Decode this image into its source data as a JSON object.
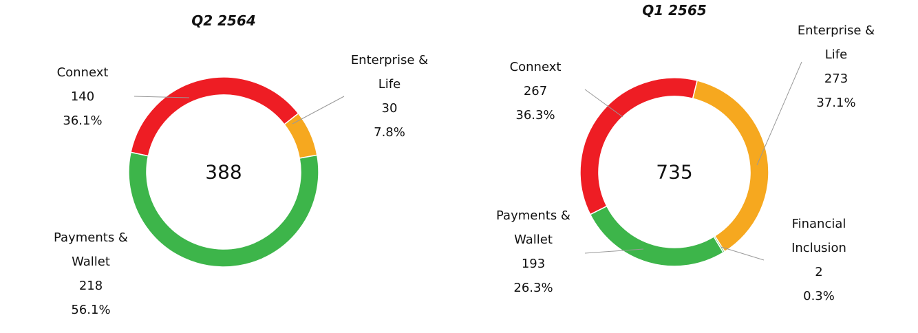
{
  "chart_data": [
    {
      "type": "pie",
      "donut": true,
      "title": "Q2 2564",
      "total": 388,
      "categories": [
        "Connext",
        "Enterprise & Life",
        "Payments & Wallet"
      ],
      "values": [
        140,
        30,
        218
      ],
      "shares": [
        36.1,
        7.8,
        56.1
      ],
      "share_labels": [
        "36.1%",
        "7.8%",
        "56.1%"
      ],
      "colors": [
        "#ee1d24",
        "#f6a81f",
        "#3db54a"
      ]
    },
    {
      "type": "pie",
      "donut": true,
      "title": "Q1 2565",
      "total": 735,
      "categories": [
        "Enterprise & Life",
        "Financial Inclusion",
        "Payments & Wallet",
        "Connext"
      ],
      "values": [
        273,
        2,
        193,
        267
      ],
      "shares": [
        37.1,
        0.3,
        26.3,
        36.3
      ],
      "share_labels": [
        "37.1%",
        "0.3%",
        "26.3%",
        "36.3%"
      ],
      "colors": [
        "#f6a81f",
        "#3db54a",
        "#3db54a",
        "#ee1d24"
      ]
    }
  ]
}
